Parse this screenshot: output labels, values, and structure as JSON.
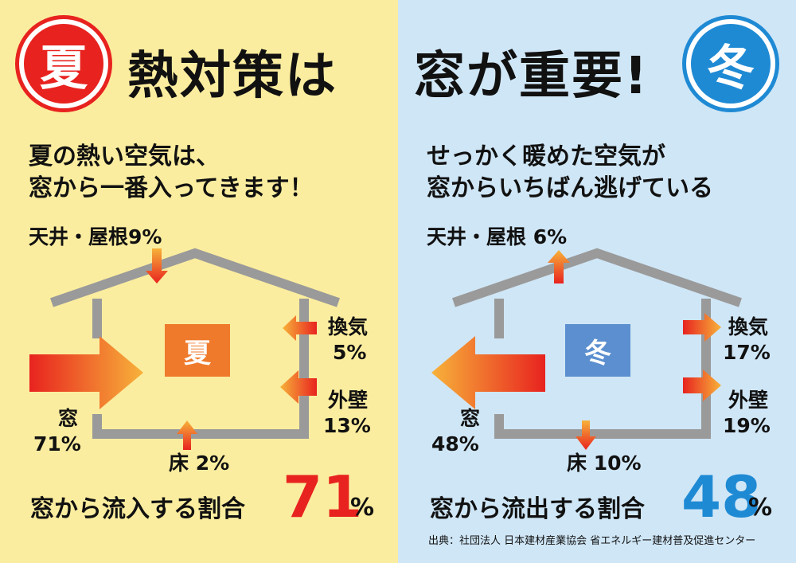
{
  "header": {
    "summer_badge": "夏",
    "title_left": "熱対策は",
    "title_right": "窓が重要!",
    "winter_badge": "冬"
  },
  "summer": {
    "line1": "夏の熱い空気は、",
    "line2": "窓から一番入ってきます！",
    "house_label": "夏",
    "roof": "天井・屋根9%",
    "vent_name": "換気",
    "vent_value": "5%",
    "wall_name": "外壁",
    "wall_value": "13%",
    "window_name": "窓",
    "window_value": "71%",
    "floor": "床 2%",
    "ratio_label": "窓から流入する割合",
    "ratio_value": "71",
    "ratio_unit": "%"
  },
  "winter": {
    "line1": "せっかく暖めた空気が",
    "line2": "窓からいちばん逃げている",
    "house_label": "冬",
    "roof": "天井・屋根 6%",
    "vent_name": "換気",
    "vent_value": "17%",
    "wall_name": "外壁",
    "wall_value": "19%",
    "window_name": "窓",
    "window_value": "48%",
    "floor": "床 10%",
    "ratio_label": "窓から流出する割合",
    "ratio_value": "48",
    "ratio_unit": "%"
  },
  "source": "出典：社団法人 日本建材産業協会 省エネルギー建材普及促進センター",
  "colors": {
    "summer_bg": "#fbed9f",
    "winter_bg": "#cfe6f6",
    "summer_red": "#e8231f",
    "winter_blue": "#1f8ad4",
    "house_gray": "#9a9a9a"
  }
}
